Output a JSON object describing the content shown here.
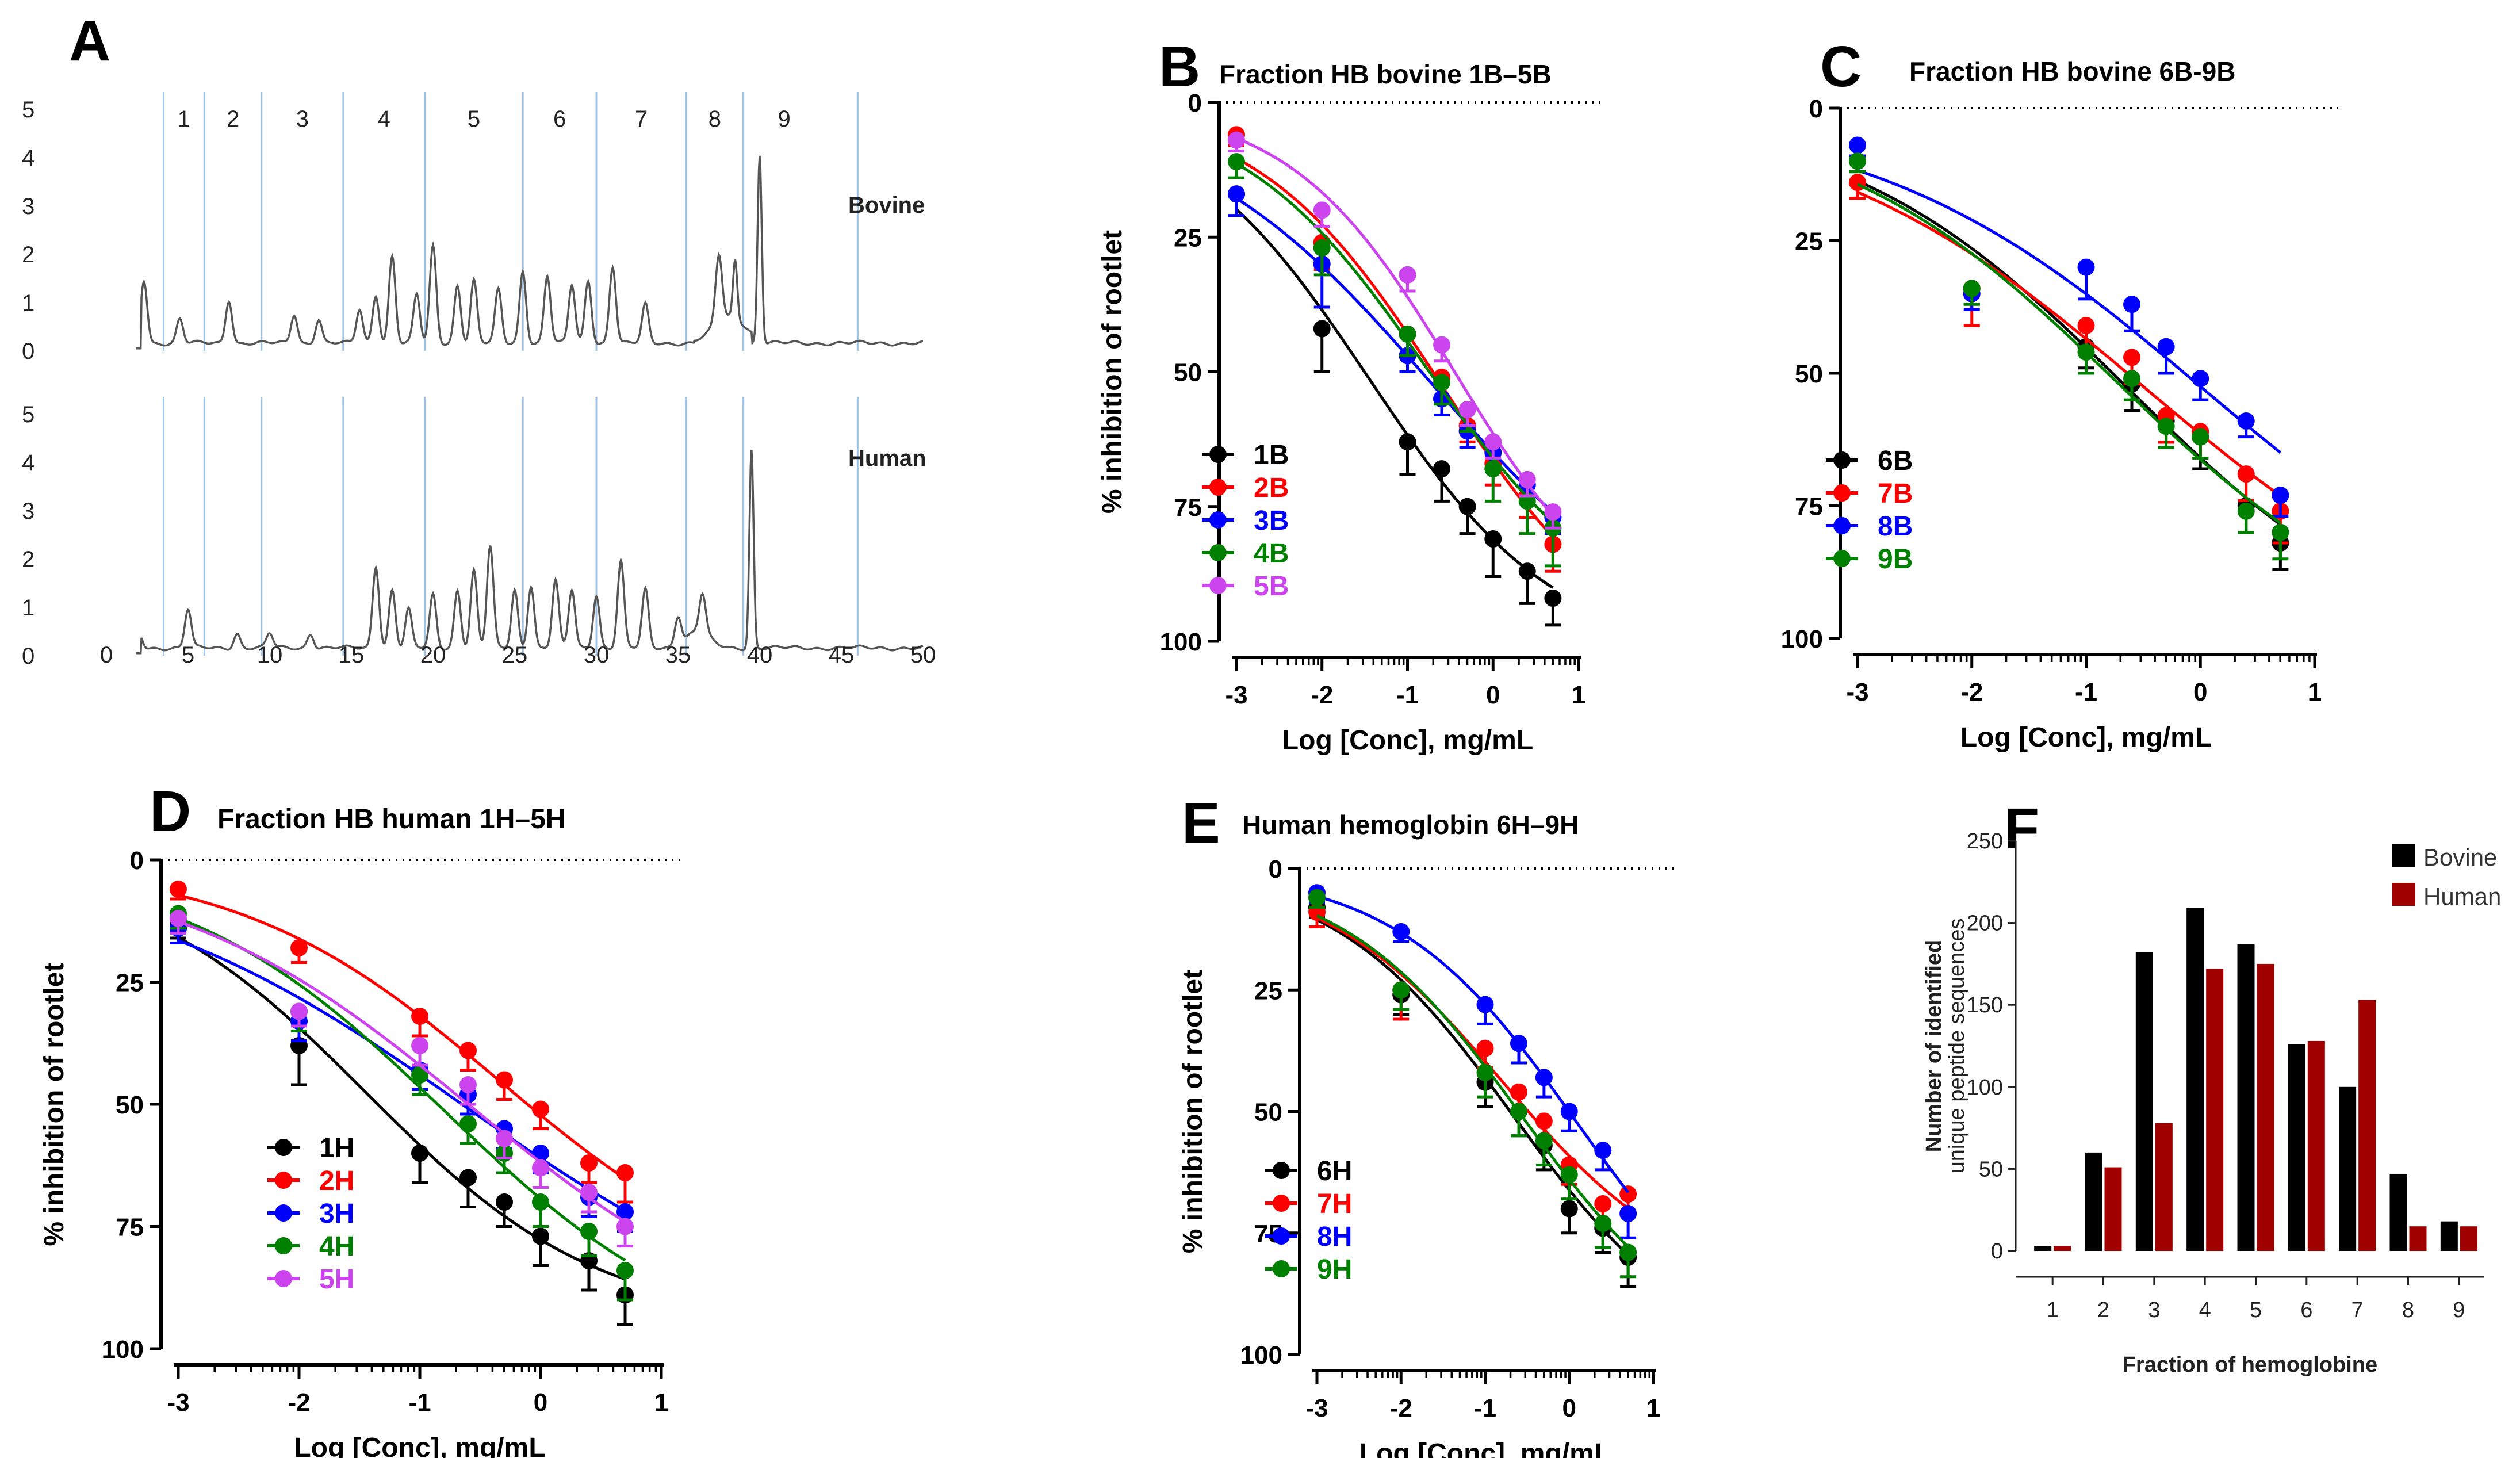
{
  "chart_data": [
    {
      "id": "A",
      "panel": "A",
      "type": "line",
      "subcharts": [
        {
          "label": "Bovine",
          "y_ticks": [
            "0",
            "1",
            "2",
            "3",
            "4",
            "5"
          ],
          "ylim": [
            0,
            5
          ],
          "peaks": [
            [
              2.3,
              1.3
            ],
            [
              4.5,
              0.5
            ],
            [
              7.5,
              0.9
            ],
            [
              11.5,
              0.6
            ],
            [
              13,
              0.5
            ],
            [
              15.5,
              0.7
            ],
            [
              16.5,
              1.0
            ],
            [
              17.5,
              1.8
            ],
            [
              19,
              1.0
            ],
            [
              20,
              2.0
            ],
            [
              21.5,
              1.2
            ],
            [
              22.5,
              1.3
            ],
            [
              24,
              1.1
            ],
            [
              25.5,
              1.5
            ],
            [
              27,
              1.4
            ],
            [
              28.5,
              1.2
            ],
            [
              29.5,
              1.3
            ],
            [
              31,
              1.6
            ],
            [
              33,
              0.8
            ],
            [
              37.5,
              1.4
            ],
            [
              38.5,
              1.2
            ],
            [
              40,
              3.9
            ]
          ]
        },
        {
          "label": "Human",
          "y_ticks": [
            "0",
            "1",
            "2",
            "3",
            "4",
            "5"
          ],
          "ylim": [
            0,
            5
          ],
          "peaks": [
            [
              2,
              0.3
            ],
            [
              5,
              0.8
            ],
            [
              8,
              0.3
            ],
            [
              10,
              0.3
            ],
            [
              12.5,
              0.3
            ],
            [
              16.5,
              1.7
            ],
            [
              17.5,
              1.2
            ],
            [
              18.5,
              0.8
            ],
            [
              20,
              1.1
            ],
            [
              21.5,
              1.2
            ],
            [
              22.5,
              1.6
            ],
            [
              23.5,
              2.1
            ],
            [
              25,
              1.2
            ],
            [
              26,
              1.3
            ],
            [
              27.5,
              1.4
            ],
            [
              28.5,
              1.2
            ],
            [
              30,
              1.1
            ],
            [
              31.5,
              1.8
            ],
            [
              33,
              1.2
            ],
            [
              35,
              0.6
            ],
            [
              36.5,
              0.8
            ],
            [
              39.5,
              4.1
            ]
          ]
        }
      ],
      "x_ticks": [
        "0",
        "5",
        "10",
        "15",
        "20",
        "25",
        "30",
        "35",
        "40",
        "45",
        "50"
      ],
      "xlim": [
        0,
        50
      ],
      "fraction_boundaries": [
        3.5,
        6,
        9.5,
        14.5,
        19.5,
        25.5,
        30,
        35.5,
        39,
        46
      ],
      "fraction_labels": [
        "1",
        "2",
        "3",
        "4",
        "5",
        "6",
        "7",
        "8",
        "9"
      ]
    },
    {
      "id": "B",
      "panel": "B",
      "type": "scatter",
      "title": "Fraction HB bovine 1B–5B",
      "xlabel": "Log [Conc], mg/mL",
      "ylabel": "% inhibition of rootlet",
      "xlim": [
        -3,
        1
      ],
      "ylim": [
        0,
        100
      ],
      "y_inverted": true,
      "x_ticks": [
        "-3",
        "-2",
        "-1",
        "0",
        "1"
      ],
      "y_ticks": [
        "0",
        "25",
        "50",
        "75",
        "100"
      ],
      "x": [
        -3,
        -2,
        -1,
        -0.6,
        -0.3,
        0,
        0.4,
        0.7
      ],
      "series": [
        {
          "name": "1B",
          "color": "#000000",
          "values": [
            17,
            42,
            63,
            68,
            75,
            81,
            87,
            92
          ],
          "errors": [
            4,
            8,
            6,
            6,
            5,
            7,
            6,
            5
          ]
        },
        {
          "name": "2B",
          "color": "#ff0000",
          "values": [
            6,
            26,
            43,
            51,
            60,
            67,
            73,
            82
          ],
          "errors": [
            2,
            5,
            4,
            4,
            3,
            4,
            4,
            5
          ]
        },
        {
          "name": "3B",
          "color": "#0000ff",
          "values": [
            17,
            30,
            47,
            55,
            61,
            65,
            71,
            77
          ],
          "errors": [
            4,
            8,
            3,
            3,
            3,
            3,
            3,
            3
          ]
        },
        {
          "name": "4B",
          "color": "#008000",
          "values": [
            11,
            27,
            43,
            52,
            57,
            68,
            74,
            79
          ],
          "errors": [
            3,
            5,
            4,
            4,
            4,
            6,
            6,
            7
          ]
        },
        {
          "name": "5B",
          "color": "#cc44ee",
          "values": [
            7,
            20,
            32,
            45,
            57,
            63,
            70,
            76
          ],
          "errors": [
            2,
            3,
            3,
            3,
            3,
            3,
            3,
            3
          ]
        }
      ],
      "legend": "bottom-left"
    },
    {
      "id": "C",
      "panel": "C",
      "type": "scatter",
      "title": "Fraction HB bovine 6B-9B",
      "xlabel": "Log [Conc], mg/mL",
      "ylabel": "",
      "xlim": [
        -3,
        1
      ],
      "ylim": [
        0,
        100
      ],
      "y_inverted": true,
      "x_ticks": [
        "-3",
        "-2",
        "-1",
        "0",
        "1"
      ],
      "y_ticks": [
        "0",
        "25",
        "50",
        "75",
        "100"
      ],
      "x": [
        -3,
        -2,
        -1,
        -0.6,
        -0.3,
        0,
        0.4,
        0.7
      ],
      "series": [
        {
          "name": "6B",
          "color": "#000000",
          "values": [
            10,
            34,
            45,
            52,
            59,
            62,
            75,
            82
          ],
          "errors": [
            2,
            3,
            4,
            5,
            4,
            6,
            5,
            5
          ]
        },
        {
          "name": "7B",
          "color": "#ff0000",
          "values": [
            14,
            34,
            41,
            47,
            58,
            61,
            69,
            76
          ],
          "errors": [
            3,
            7,
            5,
            5,
            5,
            5,
            5,
            6
          ]
        },
        {
          "name": "8B",
          "color": "#0000ff",
          "values": [
            7,
            35,
            30,
            37,
            45,
            51,
            59,
            73
          ],
          "errors": [
            2,
            3,
            6,
            5,
            5,
            4,
            3,
            4
          ]
        },
        {
          "name": "9B",
          "color": "#008000",
          "values": [
            10,
            34,
            46,
            51,
            60,
            62,
            76,
            80
          ],
          "errors": [
            2,
            3,
            4,
            4,
            4,
            4,
            4,
            5
          ]
        }
      ],
      "legend": "bottom-left"
    },
    {
      "id": "D",
      "panel": "D",
      "type": "scatter",
      "title": "Fraction HB human 1H–5H",
      "xlabel": "Log [Conc], mg/mL",
      "ylabel": "% inhibition of rootlet",
      "xlim": [
        -3,
        1
      ],
      "ylim": [
        0,
        100
      ],
      "y_inverted": true,
      "x_ticks": [
        "-3",
        "-2",
        "-1",
        "0",
        "1"
      ],
      "y_ticks": [
        "0",
        "25",
        "50",
        "75",
        "100"
      ],
      "x": [
        -3,
        -2,
        -1,
        -0.6,
        -0.3,
        0,
        0.4,
        0.7
      ],
      "series": [
        {
          "name": "1H",
          "color": "#000000",
          "values": [
            13,
            38,
            60,
            65,
            70,
            77,
            82,
            89
          ],
          "errors": [
            3,
            8,
            6,
            6,
            5,
            6,
            6,
            6
          ]
        },
        {
          "name": "2H",
          "color": "#ff0000",
          "values": [
            6,
            18,
            32,
            39,
            45,
            51,
            62,
            64
          ],
          "errors": [
            2,
            3,
            4,
            4,
            4,
            4,
            4,
            6
          ]
        },
        {
          "name": "3H",
          "color": "#0000ff",
          "values": [
            14,
            33,
            43,
            48,
            55,
            60,
            69,
            72
          ],
          "errors": [
            3,
            4,
            4,
            4,
            4,
            4,
            4,
            4
          ]
        },
        {
          "name": "4H",
          "color": "#008000",
          "values": [
            11,
            31,
            44,
            54,
            60,
            70,
            76,
            84
          ],
          "errors": [
            3,
            4,
            4,
            4,
            4,
            5,
            5,
            6
          ]
        },
        {
          "name": "5H",
          "color": "#cc44ee",
          "values": [
            12,
            31,
            38,
            46,
            57,
            63,
            68,
            75
          ],
          "errors": [
            3,
            3,
            4,
            4,
            4,
            4,
            4,
            4
          ]
        }
      ],
      "legend": "bottom-left"
    },
    {
      "id": "E",
      "panel": "E",
      "type": "scatter",
      "title": "Human hemoglobin 6H–9H",
      "xlabel": "Log [Conc], mg/mL",
      "ylabel": "% inhibition of rootlet",
      "xlim": [
        -3,
        1
      ],
      "ylim": [
        0,
        100
      ],
      "y_inverted": true,
      "x_ticks": [
        "-3",
        "-2",
        "-1",
        "0",
        "1"
      ],
      "y_ticks": [
        "0",
        "25",
        "50",
        "75",
        "100"
      ],
      "x": [
        -3,
        -2,
        -1,
        -0.6,
        -0.3,
        0,
        0.4,
        0.7
      ],
      "series": [
        {
          "name": "6H",
          "color": "#000000",
          "values": [
            8,
            26,
            44,
            50,
            57,
            70,
            74,
            80
          ],
          "errors": [
            2,
            4,
            5,
            5,
            5,
            5,
            5,
            6
          ]
        },
        {
          "name": "7H",
          "color": "#ff0000",
          "values": [
            9,
            25,
            37,
            46,
            52,
            61,
            69,
            67
          ],
          "errors": [
            3,
            6,
            4,
            4,
            4,
            4,
            4,
            4
          ]
        },
        {
          "name": "8H",
          "color": "#0000ff",
          "values": [
            5,
            13,
            28,
            36,
            43,
            50,
            58,
            71
          ],
          "errors": [
            2,
            2,
            4,
            4,
            4,
            4,
            4,
            5
          ]
        },
        {
          "name": "9H",
          "color": "#008000",
          "values": [
            6,
            25,
            42,
            50,
            56,
            63,
            73,
            79
          ],
          "errors": [
            2,
            4,
            5,
            5,
            5,
            5,
            5,
            5
          ]
        }
      ],
      "legend": "bottom-left"
    },
    {
      "id": "F",
      "panel": "F",
      "type": "bar",
      "ylabel_line1": "Number of identified",
      "ylabel_line2": "unique peptide sequences",
      "xlabel": "Fraction of hemoglobine",
      "categories": [
        "1",
        "2",
        "3",
        "4",
        "5",
        "6",
        "7",
        "8",
        "9"
      ],
      "y_ticks": [
        "0",
        "50",
        "100",
        "150",
        "200",
        "250"
      ],
      "ylim": [
        0,
        250
      ],
      "series": [
        {
          "name": "Bovine",
          "color": "#000000",
          "values": [
            3,
            60,
            182,
            209,
            187,
            126,
            100,
            47,
            18
          ]
        },
        {
          "name": "Human",
          "color": "#a00000",
          "values": [
            3,
            51,
            78,
            172,
            175,
            128,
            153,
            15,
            15
          ]
        }
      ],
      "legend": "top-right"
    }
  ]
}
